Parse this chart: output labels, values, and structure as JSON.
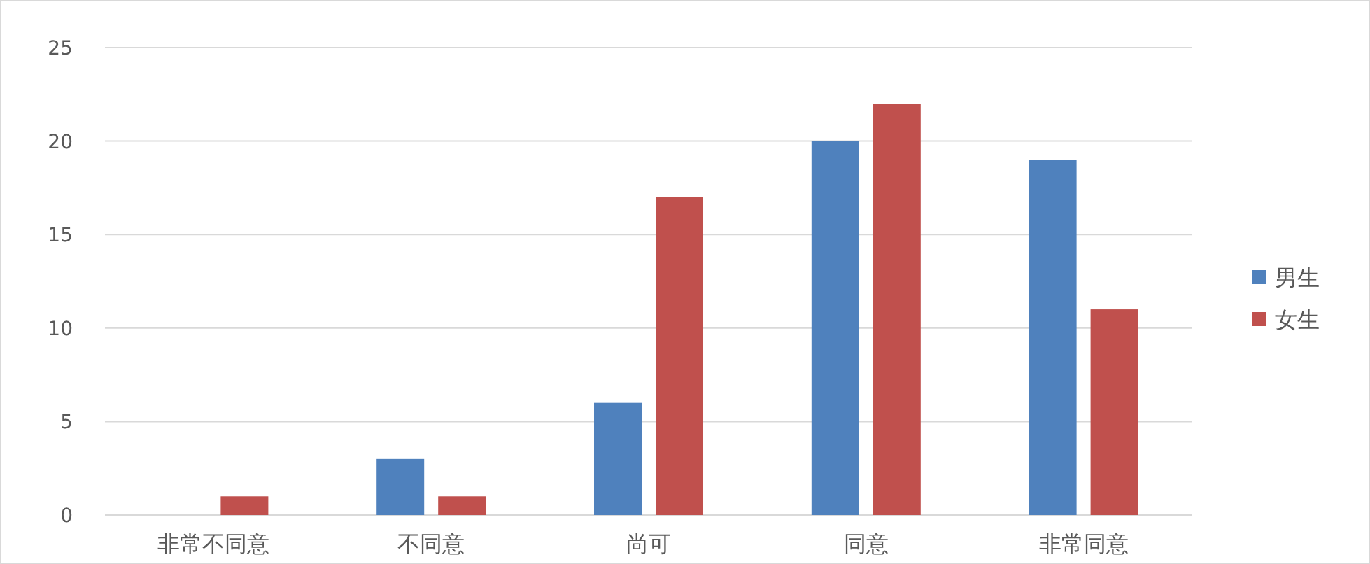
{
  "chart_data": {
    "type": "bar",
    "categories": [
      "非常不同意",
      "不同意",
      "尚可",
      "同意",
      "非常同意"
    ],
    "series": [
      {
        "name": "男生",
        "color": "#4f81bd",
        "values": [
          0,
          3,
          6,
          20,
          19
        ]
      },
      {
        "name": "女生",
        "color": "#c0504d",
        "values": [
          1,
          1,
          17,
          22,
          11
        ]
      }
    ],
    "ylim": [
      0,
      25
    ],
    "yticks": [
      0,
      5,
      10,
      15,
      20,
      25
    ],
    "grid": "y",
    "legend": "right"
  }
}
